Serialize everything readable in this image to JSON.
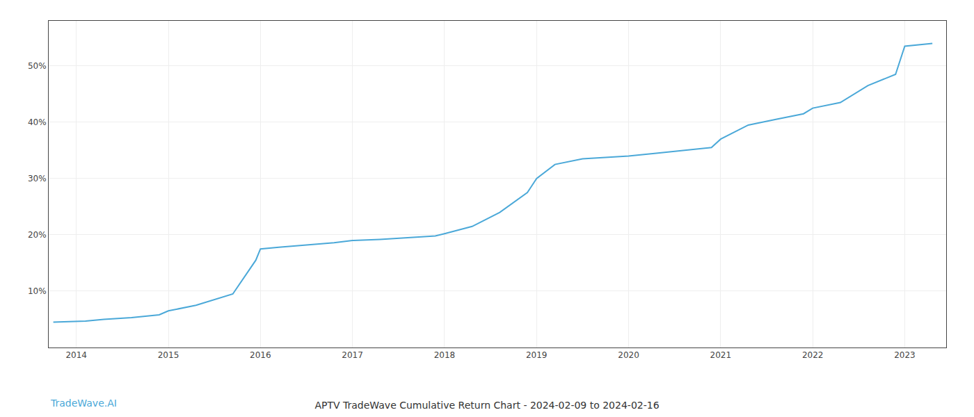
{
  "chart_data": {
    "type": "line",
    "title": "APTV TradeWave Cumulative Return Chart - 2024-02-09 to 2024-02-16",
    "annotations": [
      {
        "text": "TradeWave.AI",
        "color": "#4aa8d8"
      }
    ],
    "color": "#4aa8d8",
    "grid": true,
    "x": [
      2013.75,
      2014.1,
      2014.3,
      2014.6,
      2014.9,
      2015.0,
      2015.3,
      2015.7,
      2015.95,
      2016.0,
      2016.2,
      2016.5,
      2016.8,
      2017.0,
      2017.3,
      2017.6,
      2017.9,
      2018.0,
      2018.3,
      2018.6,
      2018.9,
      2019.0,
      2019.2,
      2019.5,
      2019.8,
      2020.0,
      2020.3,
      2020.6,
      2020.9,
      2021.0,
      2021.3,
      2021.6,
      2021.9,
      2022.0,
      2022.3,
      2022.6,
      2022.9,
      2023.0,
      2023.3
    ],
    "values": [
      4.5,
      4.7,
      5.0,
      5.3,
      5.8,
      6.5,
      7.5,
      9.5,
      15.5,
      17.5,
      17.8,
      18.2,
      18.6,
      19.0,
      19.2,
      19.5,
      19.8,
      20.2,
      21.5,
      24.0,
      27.5,
      30.0,
      32.5,
      33.5,
      33.8,
      34.0,
      34.5,
      35.0,
      35.5,
      37.0,
      39.5,
      40.5,
      41.5,
      42.5,
      43.5,
      46.5,
      48.5,
      53.5,
      54.0
    ],
    "xlim": [
      2013.7,
      2023.45
    ],
    "xticks": [
      2014,
      2015,
      2016,
      2017,
      2018,
      2019,
      2020,
      2021,
      2022,
      2023
    ],
    "ylim": [
      0,
      58
    ],
    "yticks": [
      {
        "value": 10,
        "label": "10%"
      },
      {
        "value": 20,
        "label": "20%"
      },
      {
        "value": 30,
        "label": "30%"
      },
      {
        "value": 40,
        "label": "40%"
      },
      {
        "value": 50,
        "label": "50%"
      }
    ]
  }
}
